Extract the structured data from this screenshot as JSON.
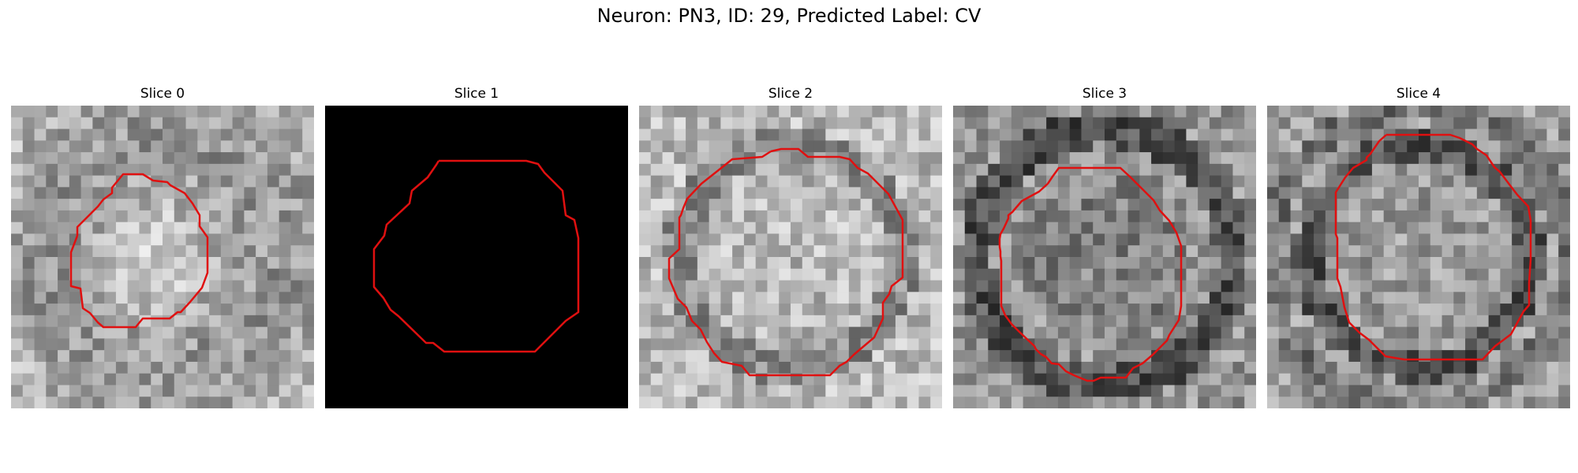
{
  "figure": {
    "title": "Neuron: PN3, ID: 29, Predicted Label: CV"
  },
  "colors": {
    "contour": "#e01010",
    "background": "#ffffff"
  },
  "slices": [
    {
      "title": "Slice 0",
      "blank": false,
      "seed": 11
    },
    {
      "title": "Slice 1",
      "blank": true,
      "seed": 23
    },
    {
      "title": "Slice 2",
      "blank": false,
      "seed": 37
    },
    {
      "title": "Slice 3",
      "blank": false,
      "seed": 53
    },
    {
      "title": "Slice 4",
      "blank": false,
      "seed": 71
    }
  ]
}
